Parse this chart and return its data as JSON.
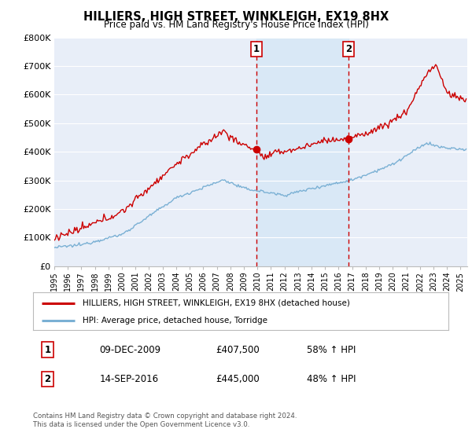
{
  "title": "HILLIERS, HIGH STREET, WINKLEIGH, EX19 8HX",
  "subtitle": "Price paid vs. HM Land Registry's House Price Index (HPI)",
  "legend_label_red": "HILLIERS, HIGH STREET, WINKLEIGH, EX19 8HX (detached house)",
  "legend_label_blue": "HPI: Average price, detached house, Torridge",
  "ylim": [
    0,
    800000
  ],
  "xlim_start": 1995.0,
  "xlim_end": 2025.5,
  "background_color": "#ffffff",
  "plot_bg_color": "#e8eef8",
  "grid_color": "#ffffff",
  "red_color": "#cc0000",
  "blue_color": "#7ab0d4",
  "sale1_date": "09-DEC-2009",
  "sale1_price": "£407,500",
  "sale1_pct": "58% ↑ HPI",
  "sale1_year": 2009.92,
  "sale2_date": "14-SEP-2016",
  "sale2_price": "£445,000",
  "sale2_pct": "48% ↑ HPI",
  "sale2_year": 2016.71,
  "footnote": "Contains HM Land Registry data © Crown copyright and database right 2024.\nThis data is licensed under the Open Government Licence v3.0.",
  "ytick_labels": [
    "£0",
    "£100K",
    "£200K",
    "£300K",
    "£400K",
    "£500K",
    "£600K",
    "£700K",
    "£800K"
  ],
  "ytick_values": [
    0,
    100000,
    200000,
    300000,
    400000,
    500000,
    600000,
    700000,
    800000
  ],
  "span_color": "#d0e4f5",
  "span_alpha": 0.6
}
